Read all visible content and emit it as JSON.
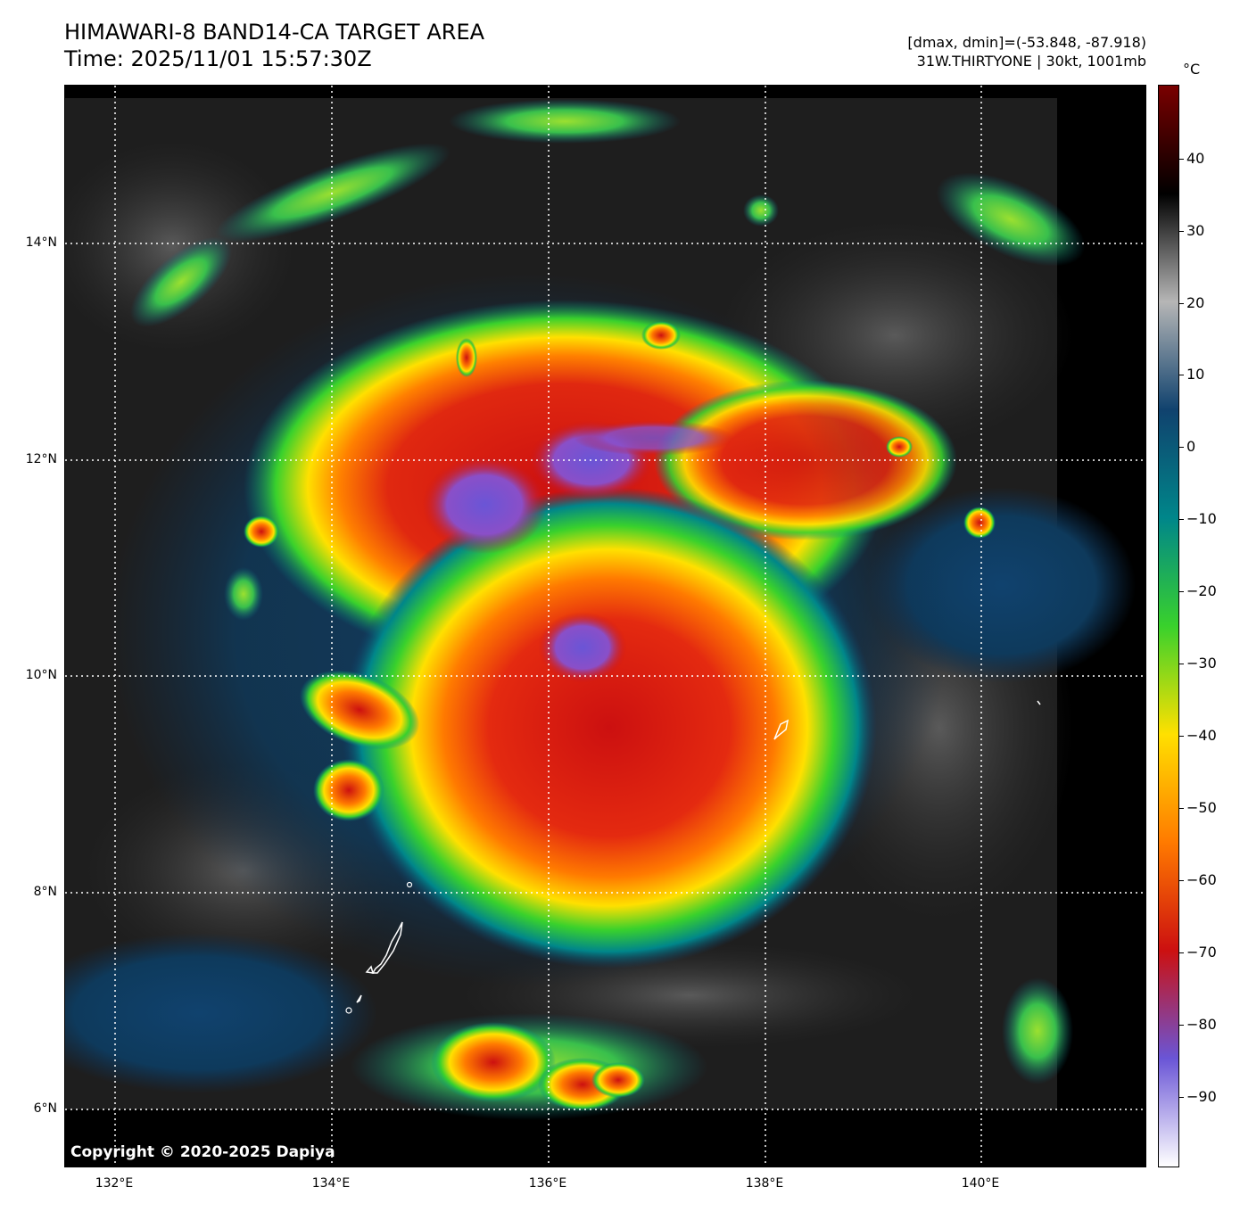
{
  "header": {
    "title_line1": "HIMAWARI-8 BAND14-CA TARGET AREA",
    "title_line2": "Time: 2025/11/01 15:57:30Z",
    "info_line1": "[dmax, dmin]=(-53.848, -87.918)",
    "info_line2": "31W.THIRTYONE | 30kt, 1001mb"
  },
  "map": {
    "lat_labels": [
      "14°N",
      "12°N",
      "10°N",
      "8°N",
      "6°N"
    ],
    "lon_labels": [
      "132°E",
      "134°E",
      "136°E",
      "138°E",
      "140°E"
    ],
    "copyright": "Copyright © 2020-2025 Dapiya",
    "colors": {
      "background": "#000000",
      "grid": "#ffffff",
      "coastline": "#ffffff"
    }
  },
  "colorbar": {
    "unit": "°C",
    "ticks": [
      "40",
      "30",
      "20",
      "10",
      "0",
      "−10",
      "−20",
      "−30",
      "−40",
      "−50",
      "−60",
      "−70",
      "−80",
      "−90"
    ],
    "colors": [
      "#ffffff",
      "#6a55d6",
      "#cc1010",
      "#ff7a00",
      "#ffe000",
      "#39d12c",
      "#00868a",
      "#10426e",
      "#b6b6b6",
      "#000000",
      "#7a0000"
    ]
  }
}
